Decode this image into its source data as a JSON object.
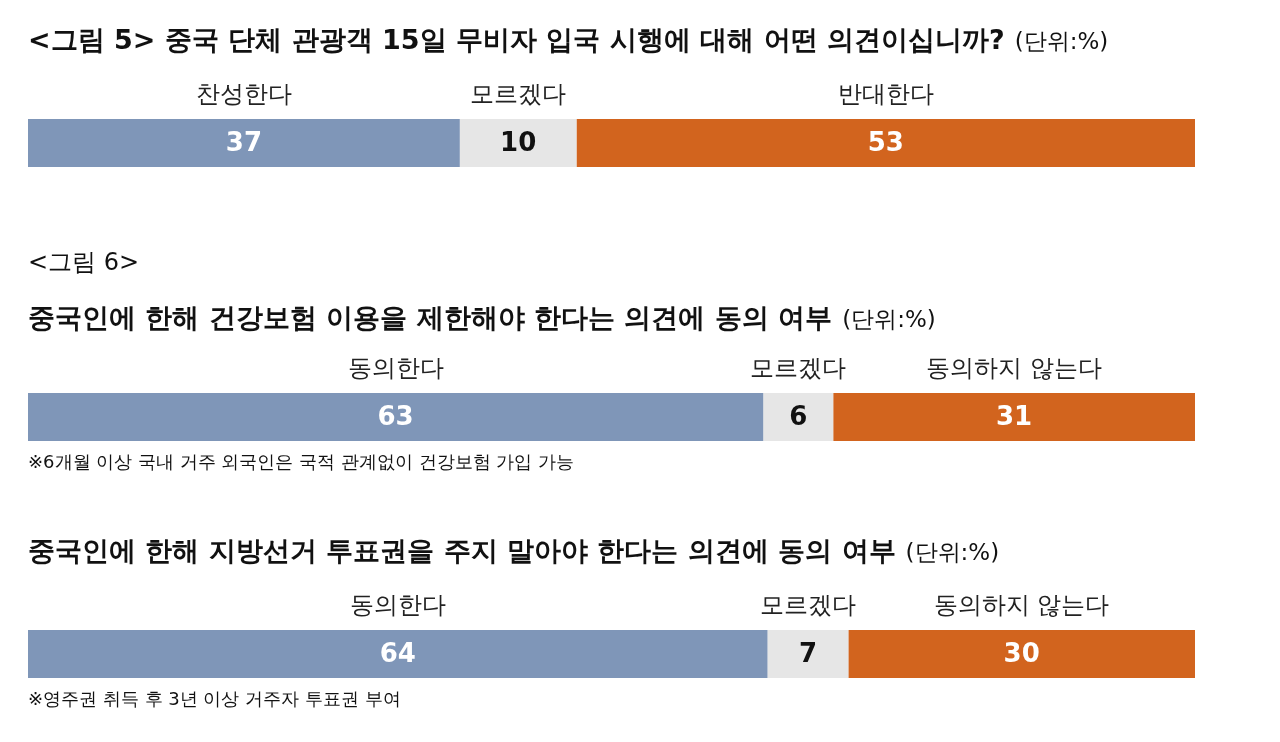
{
  "chart_data": [
    {
      "type": "bar",
      "orientation": "horizontal",
      "stacked": true,
      "title": "<그림 5> 중국 단체 관광객 15일 무비자 입국 시행에 대해 어떤 의견이십니까?",
      "subtitle": "(단위:%)",
      "categories": [
        null
      ],
      "legend": "top",
      "data_labels": true,
      "series": [
        {
          "name": "찬성한다",
          "color": "#7f96b8",
          "values": [
            37
          ]
        },
        {
          "name": "모르겠다",
          "color": "#e6e6e6",
          "values": [
            10
          ]
        },
        {
          "name": "반대한다",
          "color": "#d2641e",
          "values": [
            53
          ]
        }
      ]
    },
    {
      "type": "bar",
      "orientation": "horizontal",
      "stacked": true,
      "title": "<그림 6>\n중국인에 한해 건강보험 이용을 제한해야 한다는 의견에 동의 여부",
      "subtitle": "(단위:%)",
      "categories": [
        null
      ],
      "legend": "top",
      "data_labels": true,
      "annotations": [
        "※6개월 이상 국내 거주 외국인은 국적 관계없이 건강보험 가입 가능"
      ],
      "series": [
        {
          "name": "동의한다",
          "color": "#7f96b8",
          "values": [
            63
          ]
        },
        {
          "name": "모르겠다",
          "color": "#e6e6e6",
          "values": [
            6
          ]
        },
        {
          "name": "동의하지 않는다",
          "color": "#d2641e",
          "values": [
            31
          ]
        }
      ]
    },
    {
      "type": "bar",
      "orientation": "horizontal",
      "stacked": true,
      "title": "중국인에 한해 지방선거 투표권을 주지 말아야 한다는 의견에 동의 여부",
      "subtitle": "(단위:%)",
      "categories": [
        null
      ],
      "legend": "top",
      "data_labels": true,
      "annotations": [
        "※영주권 취득 후 3년 이상 거주자 투표권 부여"
      ],
      "series": [
        {
          "name": "동의한다",
          "color": "#7f96b8",
          "values": [
            64
          ]
        },
        {
          "name": "모르겠다",
          "color": "#e6e6e6",
          "values": [
            7
          ]
        },
        {
          "name": "동의하지 않는다",
          "color": "#d2641e",
          "values": [
            30
          ]
        }
      ]
    }
  ]
}
